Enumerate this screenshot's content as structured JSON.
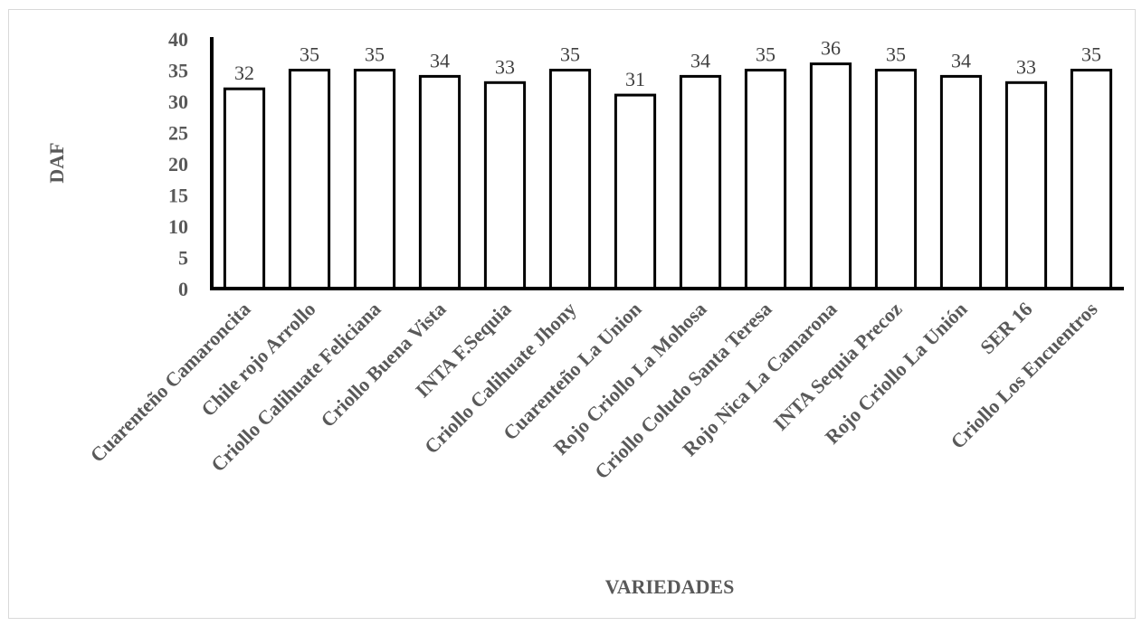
{
  "chart_data": {
    "type": "bar",
    "title": "",
    "xlabel": "VARIEDADES",
    "ylabel": "DAF",
    "ylim": [
      0,
      40
    ],
    "yticks": [
      0,
      5,
      10,
      15,
      20,
      25,
      30,
      35,
      40
    ],
    "grid": false,
    "legend": "none",
    "bar_fill": "#ffffff",
    "bar_stroke": "#000000",
    "text_color": "#595959",
    "categories": [
      "Cuarenteño  Camaroncita",
      "Chile rojo Arrollo",
      "Criollo Calihuate Feliciana",
      "Criollo Buena Vista",
      "INTA F.Sequia",
      "Criollo Calihuate Jhony",
      "Cuarenteño La Union",
      "Rojo Criollo La Mohosa",
      "Criollo Coludo Santa Teresa",
      "Rojo Nica La Camarona",
      "INTA Sequia Precoz",
      "Rojo Criollo La Unión",
      "SER 16",
      "Criollo Los Encuentros"
    ],
    "values": [
      32,
      35,
      35,
      34,
      33,
      35,
      31,
      34,
      35,
      36,
      35,
      34,
      33,
      35
    ]
  }
}
